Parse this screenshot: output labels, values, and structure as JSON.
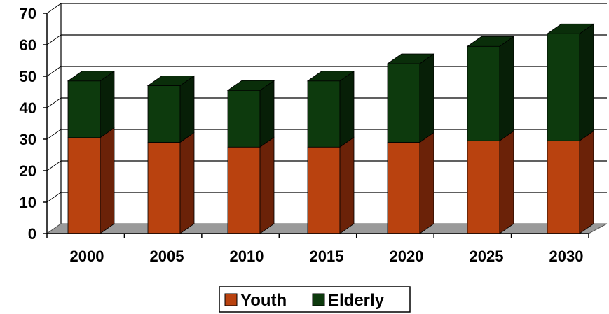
{
  "chart_data": {
    "type": "bar",
    "stacked": true,
    "three_d": true,
    "categories": [
      "2000",
      "2005",
      "2010",
      "2015",
      "2020",
      "2025",
      "2030"
    ],
    "series": [
      {
        "name": "Youth",
        "values": [
          30.5,
          29,
          27.5,
          27.5,
          29,
          29.5,
          29.5
        ]
      },
      {
        "name": "Elderly",
        "values": [
          18,
          18,
          18,
          21,
          25,
          30,
          34
        ]
      }
    ],
    "ylim": [
      0,
      70
    ],
    "yticks": [
      "0",
      "10",
      "20",
      "30",
      "40",
      "50",
      "60",
      "70"
    ],
    "grid": true,
    "legend_position": "bottom",
    "colors": {
      "youth_front": "#B9420F",
      "youth_side": "#6B2208",
      "elderly_front": "#0D3A0D",
      "elderly_side": "#071F07",
      "floor": "#9A9A9A"
    }
  }
}
